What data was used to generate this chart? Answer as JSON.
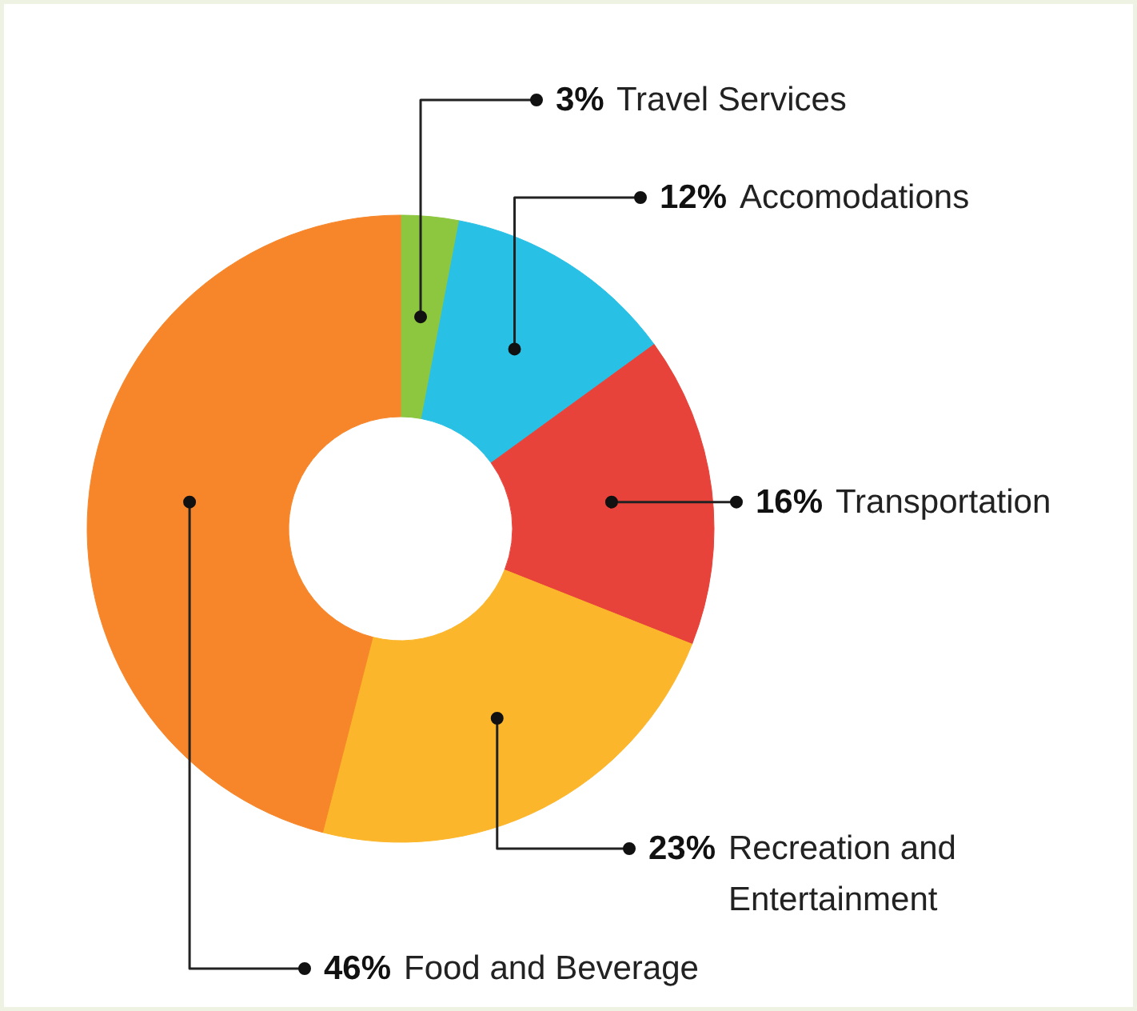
{
  "chart_data": {
    "type": "donut",
    "categories": [
      "Travel Services",
      "Accomodations",
      "Transportation",
      "Recreation and Entertainment",
      "Food and Beverage"
    ],
    "values": [
      3,
      12,
      16,
      23,
      46
    ],
    "value_labels": [
      "3%",
      "12%",
      "16%",
      "23%",
      "46%"
    ],
    "colors": [
      "#8dc63f",
      "#29c0e6",
      "#e8433a",
      "#fbb62b",
      "#f7862a"
    ]
  }
}
